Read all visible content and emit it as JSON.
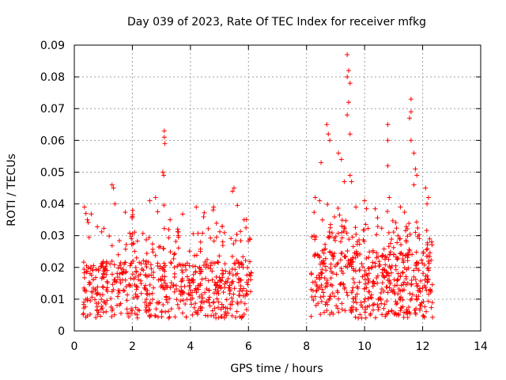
{
  "chart_data": {
    "type": "scatter",
    "title": "Day 039 of 2023, Rate Of TEC Index for receiver mfkg",
    "xlabel": "GPS time / hours",
    "ylabel": "ROTI / TECUs",
    "xlim": [
      0,
      14
    ],
    "ylim": [
      0,
      0.09
    ],
    "x_ticks": [
      "0",
      "2",
      "4",
      "6",
      "8",
      "10",
      "12",
      "14"
    ],
    "y_ticks": [
      "0",
      "0.01",
      "0.02",
      "0.03",
      "0.04",
      "0.05",
      "0.06",
      "0.07",
      "0.08",
      "0.09"
    ],
    "grid": true,
    "marker": "+",
    "series_color": "#ff0000",
    "segments": [
      {
        "x_start": 0.3,
        "x_end": 6.1,
        "baseline_min": 0.004,
        "baseline_max": 0.022,
        "n": 650
      },
      {
        "x_start": 8.15,
        "x_end": 12.35,
        "baseline_min": 0.004,
        "baseline_max": 0.025,
        "n": 560
      }
    ],
    "notable_points": [
      {
        "x": 0.35,
        "y": 0.039
      },
      {
        "x": 0.4,
        "y": 0.037
      },
      {
        "x": 0.45,
        "y": 0.035
      },
      {
        "x": 1.3,
        "y": 0.046
      },
      {
        "x": 1.35,
        "y": 0.045
      },
      {
        "x": 1.4,
        "y": 0.04
      },
      {
        "x": 2.0,
        "y": 0.036
      },
      {
        "x": 2.6,
        "y": 0.041
      },
      {
        "x": 2.8,
        "y": 0.042
      },
      {
        "x": 3.1,
        "y": 0.063
      },
      {
        "x": 3.1,
        "y": 0.061
      },
      {
        "x": 3.12,
        "y": 0.059
      },
      {
        "x": 3.05,
        "y": 0.05
      },
      {
        "x": 3.08,
        "y": 0.049
      },
      {
        "x": 3.3,
        "y": 0.035
      },
      {
        "x": 4.2,
        "y": 0.039
      },
      {
        "x": 4.8,
        "y": 0.039
      },
      {
        "x": 5.5,
        "y": 0.045
      },
      {
        "x": 5.45,
        "y": 0.044
      },
      {
        "x": 5.85,
        "y": 0.035
      },
      {
        "x": 8.3,
        "y": 0.042
      },
      {
        "x": 8.45,
        "y": 0.041
      },
      {
        "x": 8.5,
        "y": 0.053
      },
      {
        "x": 8.7,
        "y": 0.065
      },
      {
        "x": 8.75,
        "y": 0.062
      },
      {
        "x": 8.8,
        "y": 0.06
      },
      {
        "x": 9.1,
        "y": 0.056
      },
      {
        "x": 9.2,
        "y": 0.054
      },
      {
        "x": 9.3,
        "y": 0.047
      },
      {
        "x": 9.4,
        "y": 0.087
      },
      {
        "x": 9.45,
        "y": 0.082
      },
      {
        "x": 9.4,
        "y": 0.08
      },
      {
        "x": 9.5,
        "y": 0.078
      },
      {
        "x": 9.45,
        "y": 0.072
      },
      {
        "x": 9.4,
        "y": 0.068
      },
      {
        "x": 9.5,
        "y": 0.062
      },
      {
        "x": 9.5,
        "y": 0.049
      },
      {
        "x": 9.55,
        "y": 0.047
      },
      {
        "x": 9.7,
        "y": 0.039
      },
      {
        "x": 10.0,
        "y": 0.041
      },
      {
        "x": 10.8,
        "y": 0.065
      },
      {
        "x": 10.8,
        "y": 0.06
      },
      {
        "x": 10.8,
        "y": 0.052
      },
      {
        "x": 10.85,
        "y": 0.042
      },
      {
        "x": 11.6,
        "y": 0.073
      },
      {
        "x": 11.6,
        "y": 0.069
      },
      {
        "x": 11.55,
        "y": 0.067
      },
      {
        "x": 11.6,
        "y": 0.06
      },
      {
        "x": 11.7,
        "y": 0.056
      },
      {
        "x": 11.75,
        "y": 0.051
      },
      {
        "x": 11.8,
        "y": 0.049
      },
      {
        "x": 11.7,
        "y": 0.046
      },
      {
        "x": 12.1,
        "y": 0.045
      },
      {
        "x": 12.2,
        "y": 0.042
      },
      {
        "x": 12.15,
        "y": 0.04
      }
    ]
  }
}
